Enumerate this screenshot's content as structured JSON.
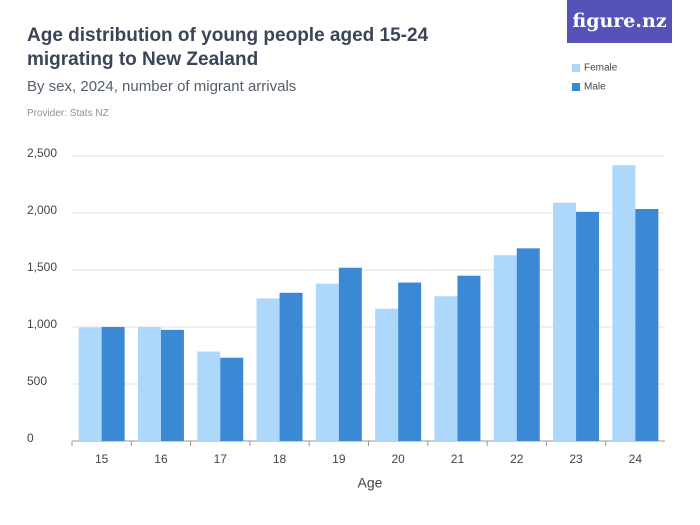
{
  "logo": "figure.nz",
  "chart_data": {
    "type": "bar",
    "title": "Age distribution of young people aged 15-24 migrating to New Zealand",
    "subtitle": "By sex, 2024, number of migrant arrivals",
    "provider": "Provider: Stats NZ",
    "x_label": "Age",
    "categories": [
      "15",
      "16",
      "17",
      "18",
      "19",
      "20",
      "21",
      "22",
      "23",
      "24"
    ],
    "series": [
      {
        "name": "Female",
        "color": "#aed8fb",
        "values": [
          995,
          1000,
          785,
          1250,
          1380,
          1160,
          1270,
          1630,
          2090,
          2420
        ]
      },
      {
        "name": "Male",
        "color": "#3b88d4",
        "values": [
          1000,
          975,
          730,
          1300,
          1520,
          1390,
          1450,
          1690,
          2010,
          2035
        ]
      }
    ],
    "ylim": [
      0,
      2500
    ],
    "yticks": [
      0,
      500,
      {
        "value": 1000,
        "label": "1,000"
      },
      {
        "value": 1500,
        "label": "1,500"
      },
      {
        "value": 2000,
        "label": "2,000"
      },
      {
        "value": 2500,
        "label": "2,500"
      }
    ],
    "grid": true,
    "legend": "top-right"
  }
}
